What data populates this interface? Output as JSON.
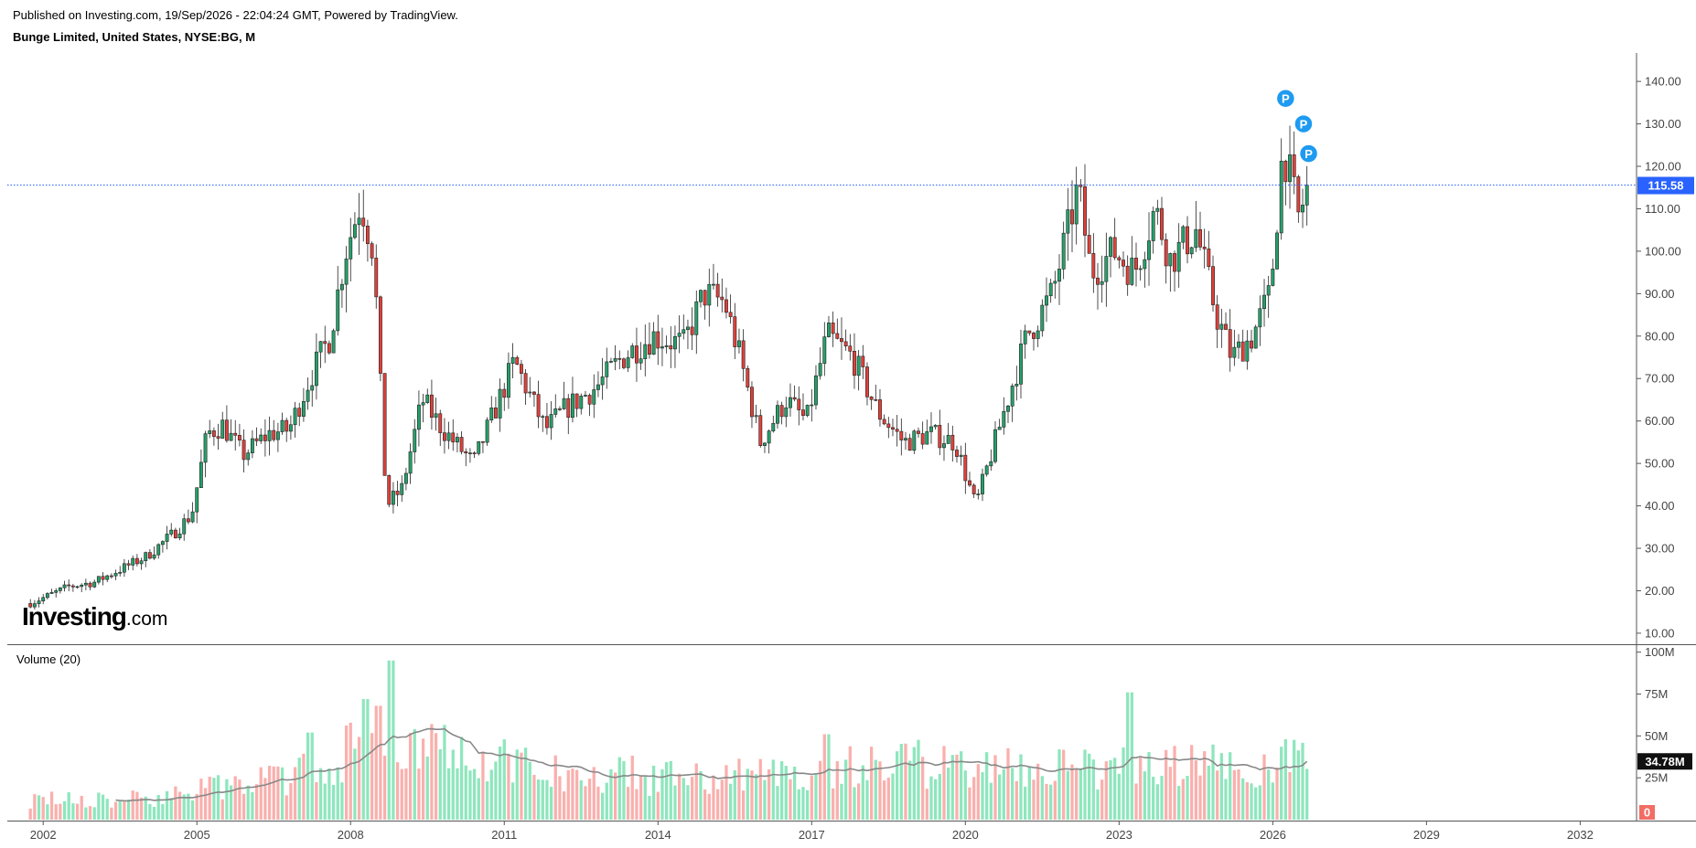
{
  "header": {
    "published": "Published on Investing.com, 19/Sep/2026 - 22:04:24 GMT, Powered by TradingView.",
    "instrument": "Bunge Limited, United States, NYSE:BG, M"
  },
  "logo": {
    "main": "Investing",
    "suffix": ".com"
  },
  "volume_panel": {
    "title": "Volume (20)"
  },
  "colors": {
    "up": "#26a06a",
    "down": "#e0403a",
    "up_volume": "#8ee6bd",
    "down_volume": "#f9b0ad",
    "price_line": "#2962ff",
    "ma": "#888888"
  },
  "chart_data": [
    {
      "type": "candlestick",
      "interval": "monthly",
      "x_ticks": [
        "2002",
        "2005",
        "2008",
        "2011",
        "2014",
        "2017",
        "2020",
        "2023",
        "2026",
        "2029",
        "2032"
      ],
      "xlim": [
        2001.3,
        2033.1
      ],
      "y_ticks": [
        "10.00",
        "20.00",
        "30.00",
        "40.00",
        "50.00",
        "60.00",
        "70.00",
        "80.00",
        "90.00",
        "100.00",
        "110.00",
        "120.00",
        "130.00",
        "140.00"
      ],
      "ylim": [
        7.4,
        146.7
      ],
      "last_price_label": "115.58",
      "last_price": 115.58,
      "markers": [
        {
          "label": "P",
          "x": 2026.25,
          "price": 136
        },
        {
          "label": "P",
          "x": 2026.6,
          "price": 130
        },
        {
          "label": "P",
          "x": 2026.7,
          "price": 123
        }
      ],
      "price_anchors": [
        [
          2001.75,
          17
        ],
        [
          2002.5,
          21
        ],
        [
          2003.0,
          22
        ],
        [
          2003.5,
          25
        ],
        [
          2004.0,
          28
        ],
        [
          2004.5,
          33
        ],
        [
          2004.9,
          38
        ],
        [
          2005.2,
          57
        ],
        [
          2005.5,
          59
        ],
        [
          2005.9,
          52
        ],
        [
          2006.4,
          57
        ],
        [
          2006.8,
          58
        ],
        [
          2007.2,
          70
        ],
        [
          2007.6,
          80
        ],
        [
          2007.9,
          100
        ],
        [
          2008.2,
          112
        ],
        [
          2008.45,
          100
        ],
        [
          2008.7,
          40
        ],
        [
          2009.0,
          44
        ],
        [
          2009.4,
          65
        ],
        [
          2009.8,
          58
        ],
        [
          2010.4,
          50
        ],
        [
          2010.9,
          65
        ],
        [
          2011.2,
          74
        ],
        [
          2011.8,
          58
        ],
        [
          2012.2,
          63
        ],
        [
          2012.8,
          68
        ],
        [
          2013.3,
          75
        ],
        [
          2013.9,
          80
        ],
        [
          2014.5,
          78
        ],
        [
          2014.9,
          90
        ],
        [
          2015.3,
          88
        ],
        [
          2015.6,
          75
        ],
        [
          2016.0,
          55
        ],
        [
          2016.5,
          65
        ],
        [
          2016.9,
          60
        ],
        [
          2017.3,
          80
        ],
        [
          2017.8,
          75
        ],
        [
          2018.3,
          62
        ],
        [
          2018.8,
          55
        ],
        [
          2019.3,
          57
        ],
        [
          2019.8,
          55
        ],
        [
          2020.2,
          40
        ],
        [
          2020.7,
          60
        ],
        [
          2021.2,
          80
        ],
        [
          2021.7,
          90
        ],
        [
          2022.2,
          115
        ],
        [
          2022.45,
          95
        ],
        [
          2022.9,
          100
        ],
        [
          2023.3,
          95
        ],
        [
          2023.7,
          110
        ],
        [
          2024.0,
          98
        ],
        [
          2024.5,
          105
        ],
        [
          2024.9,
          85
        ],
        [
          2025.2,
          75
        ],
        [
          2025.6,
          80
        ],
        [
          2025.95,
          90
        ],
        [
          2026.2,
          125
        ],
        [
          2026.5,
          108
        ],
        [
          2026.7,
          115.58
        ]
      ]
    },
    {
      "type": "bar",
      "series": "volume",
      "ma_period": 20,
      "y_ticks": [
        "25M",
        "50M",
        "75M",
        "100M"
      ],
      "ylim": [
        0,
        102
      ],
      "ma_last_label": "34.78M",
      "ma_last": 34.78,
      "zero_label": "0",
      "volume_anchors": [
        [
          2001.75,
          12
        ],
        [
          2003.5,
          11
        ],
        [
          2005.0,
          17
        ],
        [
          2006.5,
          24
        ],
        [
          2007.6,
          33
        ],
        [
          2008.4,
          50
        ],
        [
          2009.0,
          52
        ],
        [
          2010.0,
          42
        ],
        [
          2011.0,
          36
        ],
        [
          2012.0,
          28
        ],
        [
          2013.0,
          28
        ],
        [
          2014.0,
          25
        ],
        [
          2015.0,
          26
        ],
        [
          2016.0,
          27
        ],
        [
          2017.0,
          29
        ],
        [
          2018.0,
          32
        ],
        [
          2019.0,
          33
        ],
        [
          2020.0,
          33
        ],
        [
          2021.0,
          31
        ],
        [
          2022.0,
          30
        ],
        [
          2023.0,
          31
        ],
        [
          2024.0,
          31
        ],
        [
          2025.0,
          32
        ],
        [
          2026.0,
          35
        ],
        [
          2026.7,
          33
        ]
      ],
      "spikes": [
        [
          2008.8,
          95
        ],
        [
          2008.3,
          72
        ],
        [
          2008.55,
          68
        ],
        [
          2023.2,
          76
        ],
        [
          2007.2,
          52
        ],
        [
          2017.3,
          51
        ]
      ]
    }
  ]
}
